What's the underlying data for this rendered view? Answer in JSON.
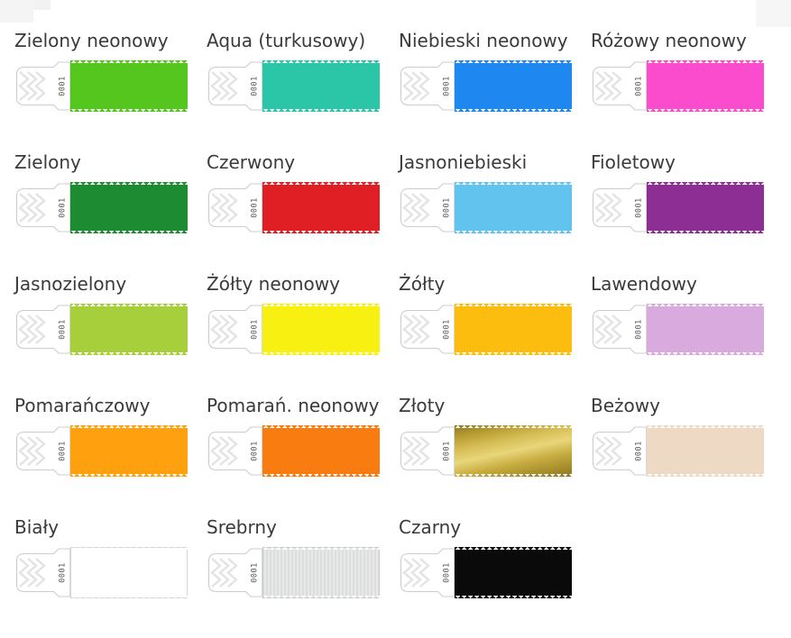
{
  "page": {
    "background": "#ffffff"
  },
  "wristband": {
    "tag_number": "0001",
    "tab_fill": "#ffffff",
    "tab_outline": "#cccccc",
    "chevron_color": "#e3e3e3",
    "tag_text_color": "#555555",
    "serration_color": "#ffffff"
  },
  "items": [
    {
      "label": "Zielony neonowy",
      "name": "neon-green",
      "fill": "#55c61d"
    },
    {
      "label": "Aqua (turkusowy)",
      "name": "aqua-turquoise",
      "fill": "#2bc6a7"
    },
    {
      "label": "Niebieski neonowy",
      "name": "neon-blue",
      "fill": "#1f88f0"
    },
    {
      "label": "Różowy neonowy",
      "name": "neon-pink",
      "fill": "#fb4ccd"
    },
    {
      "label": "Zielony",
      "name": "green",
      "fill": "#1d8b31"
    },
    {
      "label": "Czerwony",
      "name": "red",
      "fill": "#df1f24"
    },
    {
      "label": "Jasnoniebieski",
      "name": "light-blue",
      "fill": "#63c3ef"
    },
    {
      "label": "Fioletowy",
      "name": "purple",
      "fill": "#8c2e93"
    },
    {
      "label": "Jasnozielony",
      "name": "light-green",
      "fill": "#a7ce3b"
    },
    {
      "label": "Żółty neonowy",
      "name": "neon-yellow",
      "fill": "#f7f011"
    },
    {
      "label": "Żółty",
      "name": "yellow",
      "fill": "#fcbd0e"
    },
    {
      "label": "Lawendowy",
      "name": "lavender",
      "fill": "#d9aadd"
    },
    {
      "label": "Pomarańczowy",
      "name": "orange",
      "fill": "#ffa00f"
    },
    {
      "label": "Pomarań. neonowy",
      "name": "neon-orange",
      "fill": "#f87c0f"
    },
    {
      "label": "Złoty",
      "name": "gold",
      "fill": "gradient",
      "gradient": [
        "#8e7926",
        "#b89d33",
        "#d6bd55",
        "#e8d67b",
        "#c9ae42",
        "#ab912f",
        "#8d7622"
      ]
    },
    {
      "label": "Beżowy",
      "name": "beige",
      "fill": "#eed9c4"
    },
    {
      "label": "Biały",
      "name": "white",
      "fill": "#ffffff",
      "border": "#d5d5d5"
    },
    {
      "label": "Srebrny",
      "name": "silver",
      "fill": "stripes",
      "stripes": [
        "#dcdedd",
        "#e7e9e8"
      ],
      "border": "#c9cccb"
    },
    {
      "label": "Czarny",
      "name": "black",
      "fill": "#0a0a0a"
    }
  ]
}
